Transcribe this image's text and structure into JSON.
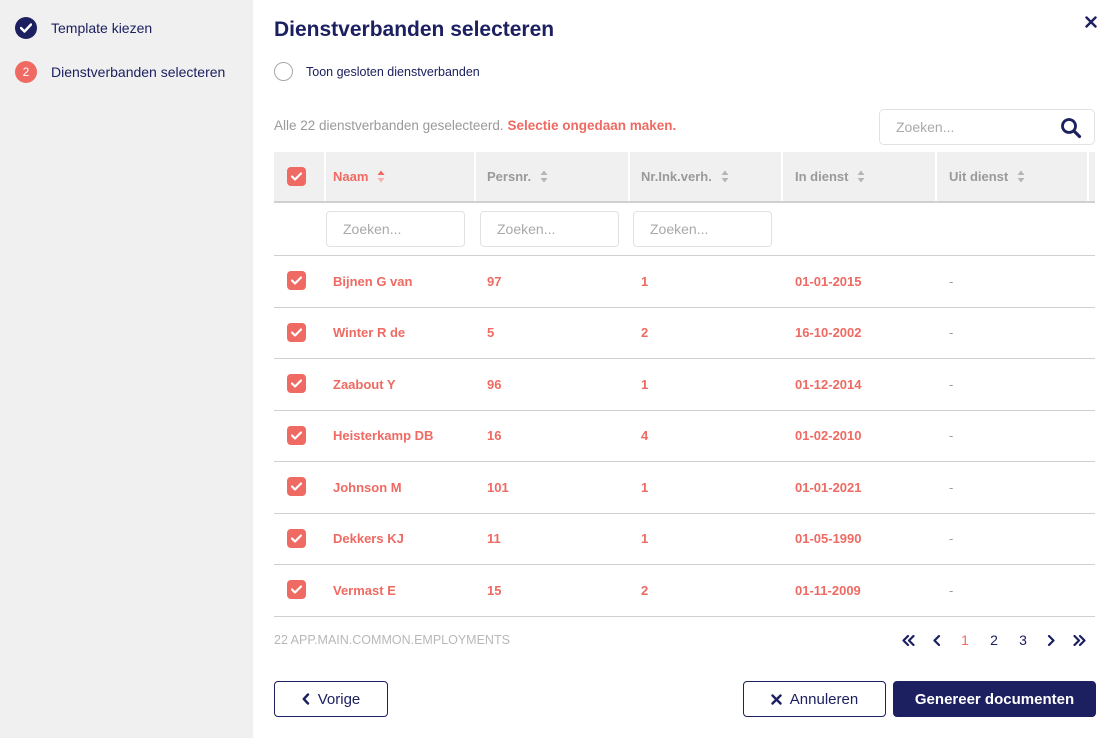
{
  "sidebar": {
    "steps": [
      {
        "label": "Template kiezen",
        "state": "done",
        "badge": ""
      },
      {
        "label": "Dienstverbanden selecteren",
        "state": "active",
        "badge": "2"
      }
    ]
  },
  "main": {
    "title": "Dienstverbanden selecteren",
    "show_closed_label": "Toon gesloten dienstverbanden",
    "selection_text": "Alle 22 dienstverbanden geselecteerd.",
    "undo_link": "Selectie ongedaan maken.",
    "search_placeholder": "Zoeken...",
    "table": {
      "columns": [
        "Naam",
        "Persnr.",
        "Nr.Ink.verh.",
        "In dienst",
        "Uit dienst"
      ],
      "sorted_column": "Naam",
      "filter_placeholder": "Zoeken...",
      "rows": [
        {
          "naam": "Bijnen G van",
          "persnr": "97",
          "nr": "1",
          "in": "01-01-2015",
          "uit": "-",
          "checked": true
        },
        {
          "naam": "Winter R de",
          "persnr": "5",
          "nr": "2",
          "in": "16-10-2002",
          "uit": "-",
          "checked": true
        },
        {
          "naam": "Zaabout Y",
          "persnr": "96",
          "nr": "1",
          "in": "01-12-2014",
          "uit": "-",
          "checked": true
        },
        {
          "naam": "Heisterkamp DB",
          "persnr": "16",
          "nr": "4",
          "in": "01-02-2010",
          "uit": "-",
          "checked": true
        },
        {
          "naam": "Johnson M",
          "persnr": "101",
          "nr": "1",
          "in": "01-01-2021",
          "uit": "-",
          "checked": true
        },
        {
          "naam": "Dekkers KJ",
          "persnr": "11",
          "nr": "1",
          "in": "01-05-1990",
          "uit": "-",
          "checked": true
        },
        {
          "naam": "Vermast E",
          "persnr": "15",
          "nr": "2",
          "in": "01-11-2009",
          "uit": "-",
          "checked": true
        }
      ]
    },
    "footer_count": "22 APP.MAIN.COMMON.EMPLOYMENTS",
    "pagination": {
      "pages": [
        "1",
        "2",
        "3"
      ],
      "current": "1"
    },
    "buttons": {
      "previous": "Vorige",
      "cancel": "Annuleren",
      "generate": "Genereer documenten"
    }
  },
  "colors": {
    "navy": "#1c2060",
    "accent": "#ee6a62",
    "sidebar_bg": "#f0f0f0",
    "muted": "#9a9a9a"
  },
  "icons": [
    "check-icon",
    "close-icon",
    "search-icon",
    "sort-icon",
    "chevron-left-icon",
    "double-chevron-left-icon",
    "chevron-right-icon",
    "double-chevron-right-icon"
  ]
}
